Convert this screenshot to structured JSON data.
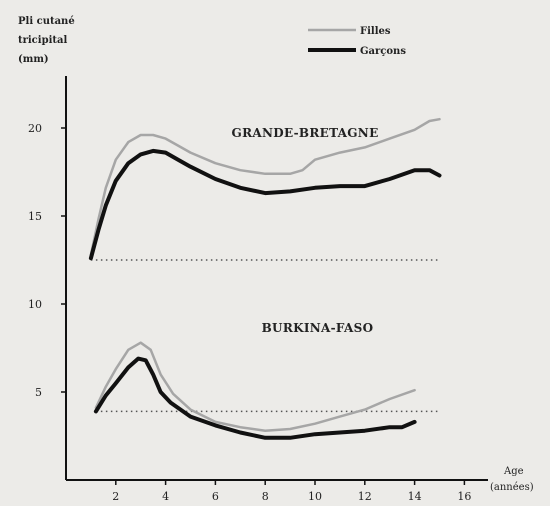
{
  "chart_data": {
    "type": "line",
    "ylabel": [
      "Pli cutané",
      "tricipital",
      "(mm)"
    ],
    "xlabel": [
      "Age",
      "(années)"
    ],
    "xlim": [
      0,
      16.5
    ],
    "ylim": [
      0,
      24
    ],
    "x_ticks": [
      2,
      4,
      6,
      8,
      10,
      12,
      14,
      16
    ],
    "y_ticks": [
      5,
      10,
      15,
      20
    ],
    "legend": {
      "position": "top-right",
      "entries": [
        {
          "label": "Filles",
          "color": "#a6a6a6",
          "width": 2.5
        },
        {
          "label": "Garçons",
          "color": "#111111",
          "width": 4
        }
      ]
    },
    "groups": [
      {
        "name": "GRANDE-BRETAGNE",
        "annotation_at": [
          9.6,
          19.5
        ],
        "reference_line": {
          "y": 12.5,
          "x": [
            1,
            15
          ]
        },
        "series": [
          {
            "name": "Filles",
            "color": "#a6a6a6",
            "width": 2.5,
            "points": [
              [
                1,
                12.8
              ],
              [
                1.3,
                14.8
              ],
              [
                1.6,
                16.6
              ],
              [
                2,
                18.2
              ],
              [
                2.5,
                19.2
              ],
              [
                3,
                19.6
              ],
              [
                3.5,
                19.6
              ],
              [
                4,
                19.4
              ],
              [
                4.5,
                19.0
              ],
              [
                5,
                18.6
              ],
              [
                6,
                18.0
              ],
              [
                7,
                17.6
              ],
              [
                8,
                17.4
              ],
              [
                9,
                17.4
              ],
              [
                9.5,
                17.6
              ],
              [
                10,
                18.2
              ],
              [
                11,
                18.6
              ],
              [
                12,
                18.9
              ],
              [
                13,
                19.4
              ],
              [
                14,
                19.9
              ],
              [
                14.6,
                20.4
              ],
              [
                15,
                20.5
              ]
            ]
          },
          {
            "name": "Garçons",
            "color": "#111111",
            "width": 4,
            "points": [
              [
                1,
                12.6
              ],
              [
                1.3,
                14.2
              ],
              [
                1.6,
                15.6
              ],
              [
                2,
                17.0
              ],
              [
                2.5,
                18.0
              ],
              [
                3,
                18.5
              ],
              [
                3.5,
                18.7
              ],
              [
                4,
                18.6
              ],
              [
                4.5,
                18.2
              ],
              [
                5,
                17.8
              ],
              [
                6,
                17.1
              ],
              [
                7,
                16.6
              ],
              [
                8,
                16.3
              ],
              [
                9,
                16.4
              ],
              [
                10,
                16.6
              ],
              [
                11,
                16.7
              ],
              [
                12,
                16.7
              ],
              [
                13,
                17.1
              ],
              [
                14,
                17.6
              ],
              [
                14.6,
                17.6
              ],
              [
                15,
                17.3
              ]
            ]
          }
        ]
      },
      {
        "name": "BURKINA-FASO",
        "annotation_at": [
          10.1,
          8.4
        ],
        "reference_line": {
          "y": 3.9,
          "x": [
            1.2,
            15
          ]
        },
        "series": [
          {
            "name": "Filles",
            "color": "#a6a6a6",
            "width": 2.5,
            "points": [
              [
                1.2,
                4.1
              ],
              [
                1.6,
                5.3
              ],
              [
                2,
                6.3
              ],
              [
                2.5,
                7.4
              ],
              [
                3,
                7.8
              ],
              [
                3.4,
                7.4
              ],
              [
                3.8,
                6.0
              ],
              [
                4.3,
                4.9
              ],
              [
                5,
                4.0
              ],
              [
                6,
                3.3
              ],
              [
                7,
                3.0
              ],
              [
                8,
                2.8
              ],
              [
                9,
                2.9
              ],
              [
                10,
                3.2
              ],
              [
                11,
                3.6
              ],
              [
                12,
                4.0
              ],
              [
                13,
                4.6
              ],
              [
                14,
                5.1
              ]
            ]
          },
          {
            "name": "Garçons",
            "color": "#111111",
            "width": 4,
            "points": [
              [
                1.2,
                3.9
              ],
              [
                1.6,
                4.8
              ],
              [
                2,
                5.5
              ],
              [
                2.5,
                6.4
              ],
              [
                2.9,
                6.9
              ],
              [
                3.2,
                6.8
              ],
              [
                3.5,
                6.0
              ],
              [
                3.8,
                5.0
              ],
              [
                4.2,
                4.4
              ],
              [
                5,
                3.6
              ],
              [
                6,
                3.1
              ],
              [
                7,
                2.7
              ],
              [
                8,
                2.4
              ],
              [
                9,
                2.4
              ],
              [
                10,
                2.6
              ],
              [
                11,
                2.7
              ],
              [
                12,
                2.8
              ],
              [
                13,
                3.0
              ],
              [
                13.5,
                3.0
              ],
              [
                14,
                3.3
              ]
            ]
          }
        ]
      }
    ]
  }
}
